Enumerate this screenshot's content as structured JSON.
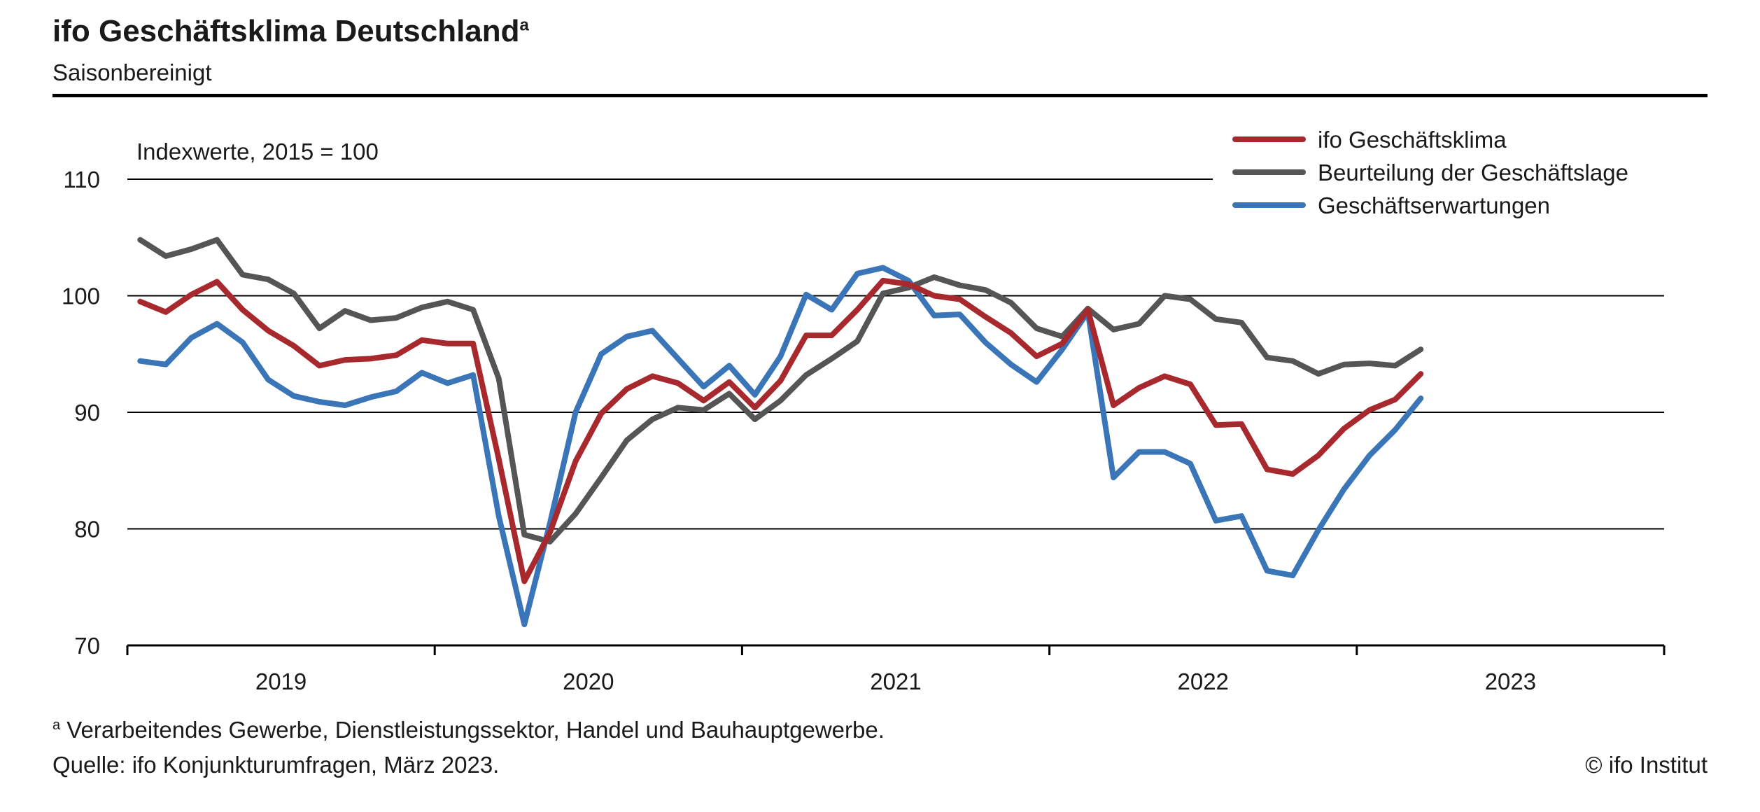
{
  "header": {
    "title": "ifo Geschäftsklima Deutschland",
    "title_marker": "a",
    "subtitle": "Saisonbereinigt"
  },
  "footer": {
    "footnote_marker": "a",
    "footnote": "Verarbeitendes Gewerbe, Dienstleistungssektor, Handel und Bauhauptgewerbe.",
    "source": "Quelle: ifo Konjunkturumfragen, März 2023.",
    "copyright": "© ifo Institut"
  },
  "chart_data": {
    "type": "line",
    "title": "ifo Geschäftsklima Deutschland",
    "subtitle": "Saisonbereinigt",
    "ylabel": "Indexwerte, 2015 = 100",
    "xlabel": "",
    "ylim": [
      70,
      110
    ],
    "yticks": [
      70,
      80,
      90,
      100,
      110
    ],
    "xlim": [
      "2019-01",
      "2023-12"
    ],
    "year_labels": [
      "2019",
      "2020",
      "2021",
      "2022",
      "2023"
    ],
    "grid": "horizontal",
    "legend_position": "top-right",
    "x": [
      "2019-01",
      "2019-02",
      "2019-03",
      "2019-04",
      "2019-05",
      "2019-06",
      "2019-07",
      "2019-08",
      "2019-09",
      "2019-10",
      "2019-11",
      "2019-12",
      "2020-01",
      "2020-02",
      "2020-03",
      "2020-04",
      "2020-05",
      "2020-06",
      "2020-07",
      "2020-08",
      "2020-09",
      "2020-10",
      "2020-11",
      "2020-12",
      "2021-01",
      "2021-02",
      "2021-03",
      "2021-04",
      "2021-05",
      "2021-06",
      "2021-07",
      "2021-08",
      "2021-09",
      "2021-10",
      "2021-11",
      "2021-12",
      "2022-01",
      "2022-02",
      "2022-03",
      "2022-04",
      "2022-05",
      "2022-06",
      "2022-07",
      "2022-08",
      "2022-09",
      "2022-10",
      "2022-11",
      "2022-12",
      "2023-01",
      "2023-02",
      "2023-03"
    ],
    "series": [
      {
        "name": "ifo Geschäftsklima",
        "color": "#a8292d",
        "values": [
          99.5,
          98.6,
          100.1,
          101.2,
          98.8,
          97.0,
          95.7,
          94.0,
          94.5,
          94.6,
          94.9,
          96.2,
          95.9,
          95.9,
          86.0,
          75.5,
          79.7,
          85.8,
          89.9,
          92.0,
          93.1,
          92.5,
          91.0,
          92.6,
          90.4,
          92.7,
          96.6,
          96.6,
          98.8,
          101.3,
          101.0,
          100.0,
          99.7,
          98.2,
          96.8,
          94.8,
          95.9,
          98.8,
          90.6,
          92.1,
          93.1,
          92.4,
          88.9,
          89.0,
          85.1,
          84.7,
          86.3,
          88.6,
          90.2,
          91.1,
          93.3
        ]
      },
      {
        "name": "Beurteilung der Geschäftslage",
        "color": "#555555",
        "values": [
          104.8,
          103.4,
          104.0,
          104.8,
          101.8,
          101.4,
          100.2,
          97.2,
          98.7,
          97.9,
          98.1,
          99.0,
          99.5,
          98.8,
          92.9,
          79.5,
          78.9,
          81.3,
          84.4,
          87.6,
          89.4,
          90.4,
          90.2,
          91.6,
          89.4,
          91.0,
          93.2,
          94.6,
          96.1,
          100.2,
          100.7,
          101.6,
          100.9,
          100.5,
          99.4,
          97.2,
          96.5,
          98.9,
          97.1,
          97.6,
          100.0,
          99.7,
          98.0,
          97.7,
          94.7,
          94.4,
          93.3,
          94.1,
          94.2,
          94.0,
          95.4
        ]
      },
      {
        "name": "Geschäftserwartungen",
        "color": "#3a75b8",
        "values": [
          94.4,
          94.1,
          96.4,
          97.6,
          96.0,
          92.8,
          91.4,
          90.9,
          90.6,
          91.3,
          91.8,
          93.4,
          92.5,
          93.2,
          81.1,
          71.8,
          80.5,
          90.0,
          95.0,
          96.5,
          97.0,
          94.6,
          92.2,
          94.0,
          91.5,
          94.8,
          100.1,
          98.8,
          101.9,
          102.4,
          101.3,
          98.3,
          98.4,
          96.0,
          94.1,
          92.6,
          95.4,
          98.6,
          84.4,
          86.6,
          86.6,
          85.6,
          80.7,
          81.1,
          76.4,
          76.0,
          79.9,
          83.4,
          86.3,
          88.5,
          91.2
        ]
      }
    ]
  }
}
